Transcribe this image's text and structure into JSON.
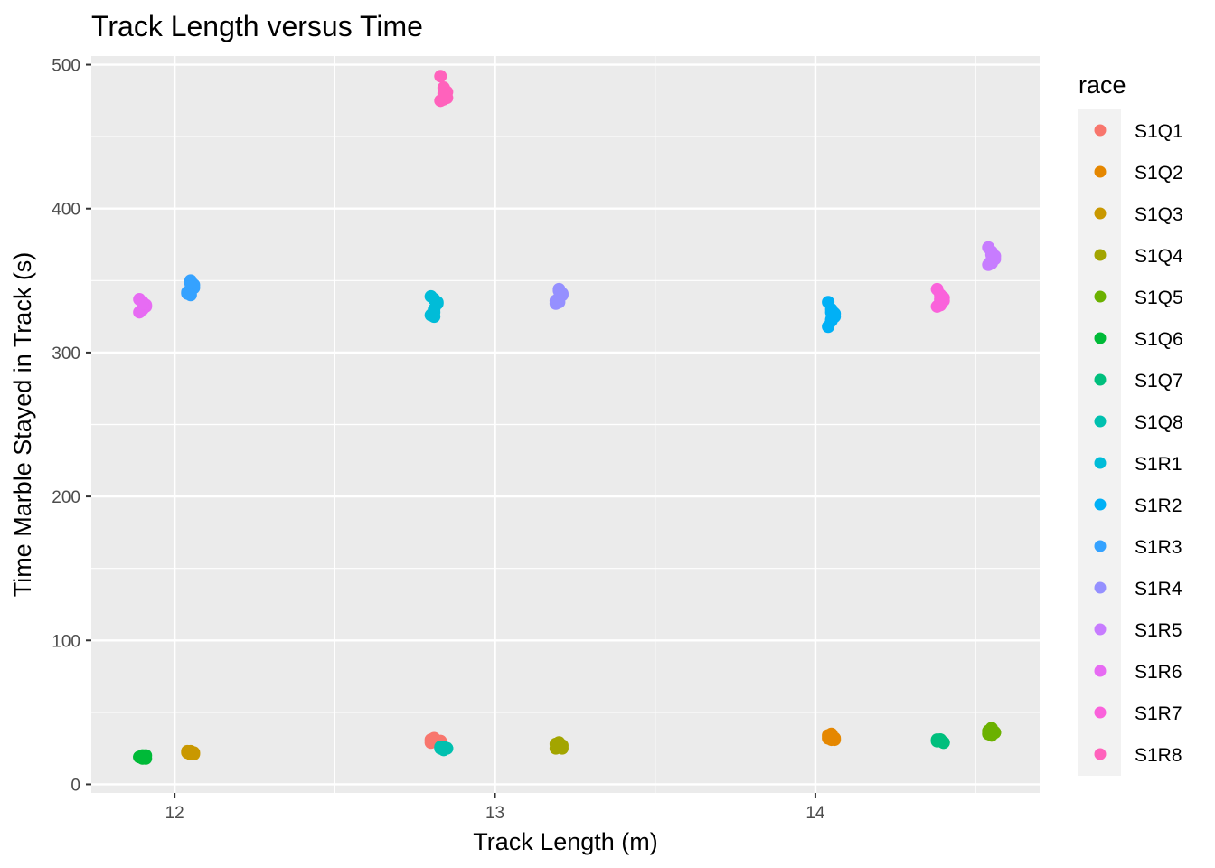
{
  "chart_data": {
    "type": "scatter",
    "title": "Track Length versus Time",
    "xlabel": "Track Length (m)",
    "ylabel": "Time Marble Stayed in Track (s)",
    "xlim": [
      11.74,
      14.7
    ],
    "ylim": [
      -6,
      506
    ],
    "x_ticks": [
      12,
      13,
      14
    ],
    "y_ticks": [
      0,
      100,
      200,
      300,
      400,
      500
    ],
    "x_tick_labels": [
      "12",
      "13",
      "14"
    ],
    "y_tick_labels": [
      "0",
      "100",
      "200",
      "300",
      "400",
      "500"
    ],
    "grid": true,
    "legend": {
      "title": "race",
      "position": "right"
    },
    "series": [
      {
        "name": "S1Q1",
        "color": "#F8766D",
        "x": [
          12.81,
          12.82,
          12.8,
          12.83,
          12.81,
          12.82,
          12.8,
          12.83
        ],
        "y": [
          31,
          30,
          29,
          30,
          32,
          29,
          31,
          30
        ]
      },
      {
        "name": "S1Q2",
        "color": "#E58700",
        "x": [
          14.04,
          14.05,
          14.06,
          14.05,
          14.04,
          14.06,
          14.05,
          14.05
        ],
        "y": [
          32,
          35,
          31,
          33,
          34,
          32,
          31,
          33
        ]
      },
      {
        "name": "S1Q3",
        "color": "#C99800",
        "x": [
          12.04,
          12.05,
          12.06,
          12.05,
          12.04,
          12.06,
          12.05,
          12.05
        ],
        "y": [
          22,
          23,
          21,
          22,
          23,
          22,
          21,
          22
        ]
      },
      {
        "name": "S1Q4",
        "color": "#A3A500",
        "x": [
          13.19,
          13.2,
          13.21,
          13.2,
          13.19,
          13.21,
          13.2,
          13.2
        ],
        "y": [
          25,
          29,
          27,
          26,
          28,
          25,
          27,
          26
        ]
      },
      {
        "name": "S1Q5",
        "color": "#6BB100",
        "x": [
          14.54,
          14.55,
          14.56,
          14.55,
          14.54,
          14.56,
          14.55,
          14.55
        ],
        "y": [
          35,
          38,
          36,
          35,
          37,
          36,
          34,
          39
        ]
      },
      {
        "name": "S1Q6",
        "color": "#00BA38",
        "x": [
          11.89,
          11.9,
          11.91,
          11.9,
          11.89,
          11.91,
          11.9,
          11.9
        ],
        "y": [
          19,
          20,
          18,
          19,
          19,
          20,
          18,
          19
        ]
      },
      {
        "name": "S1Q7",
        "color": "#00BF7D",
        "x": [
          14.38,
          14.39,
          14.4,
          14.39,
          14.38,
          14.4,
          14.39,
          14.39
        ],
        "y": [
          30,
          31,
          29,
          30,
          31,
          29,
          30,
          31
        ]
      },
      {
        "name": "S1Q8",
        "color": "#00C0AF",
        "x": [
          12.83,
          12.84,
          12.85,
          12.84,
          12.83,
          12.85,
          12.84,
          12.84
        ],
        "y": [
          25,
          26,
          25,
          24,
          26,
          25,
          24,
          25
        ]
      },
      {
        "name": "S1R1",
        "color": "#00BCD8",
        "x": [
          12.8,
          12.81,
          12.82,
          12.81,
          12.8,
          12.82,
          12.81,
          12.81
        ],
        "y": [
          326,
          330,
          334,
          337,
          339,
          335,
          328,
          325
        ]
      },
      {
        "name": "S1R2",
        "color": "#00B0F6",
        "x": [
          14.04,
          14.05,
          14.06,
          14.05,
          14.04,
          14.06,
          14.05,
          14.05
        ],
        "y": [
          318,
          323,
          327,
          330,
          335,
          325,
          322,
          328
        ]
      },
      {
        "name": "S1R3",
        "color": "#35A2FF",
        "x": [
          12.04,
          12.05,
          12.06,
          12.05,
          12.04,
          12.06,
          12.05,
          12.05
        ],
        "y": [
          341,
          344,
          347,
          350,
          342,
          345,
          348,
          340
        ]
      },
      {
        "name": "S1R4",
        "color": "#9590FF",
        "x": [
          13.19,
          13.2,
          13.21,
          13.2,
          13.19,
          13.21,
          13.2,
          13.2
        ],
        "y": [
          334,
          338,
          341,
          344,
          336,
          340,
          343,
          335
        ]
      },
      {
        "name": "S1R5",
        "color": "#C77CFF",
        "x": [
          14.54,
          14.55,
          14.56,
          14.55,
          14.54,
          14.56,
          14.55,
          14.55
        ],
        "y": [
          361,
          364,
          367,
          370,
          373,
          365,
          362,
          368
        ]
      },
      {
        "name": "S1R6",
        "color": "#E76BF3",
        "x": [
          11.89,
          11.9,
          11.91,
          11.9,
          11.89,
          11.91,
          11.9,
          11.9
        ],
        "y": [
          328,
          331,
          333,
          335,
          337,
          332,
          330,
          334
        ]
      },
      {
        "name": "S1R7",
        "color": "#FA62DB",
        "x": [
          14.38,
          14.39,
          14.4,
          14.39,
          14.38,
          14.4,
          14.39,
          14.39
        ],
        "y": [
          332,
          335,
          338,
          340,
          344,
          336,
          333,
          337
        ]
      },
      {
        "name": "S1R8",
        "color": "#FF62BC",
        "x": [
          12.83,
          12.84,
          12.85,
          12.84,
          12.83,
          12.85,
          12.84,
          12.84
        ],
        "y": [
          475,
          478,
          481,
          484,
          492,
          477,
          476,
          480
        ]
      }
    ]
  }
}
